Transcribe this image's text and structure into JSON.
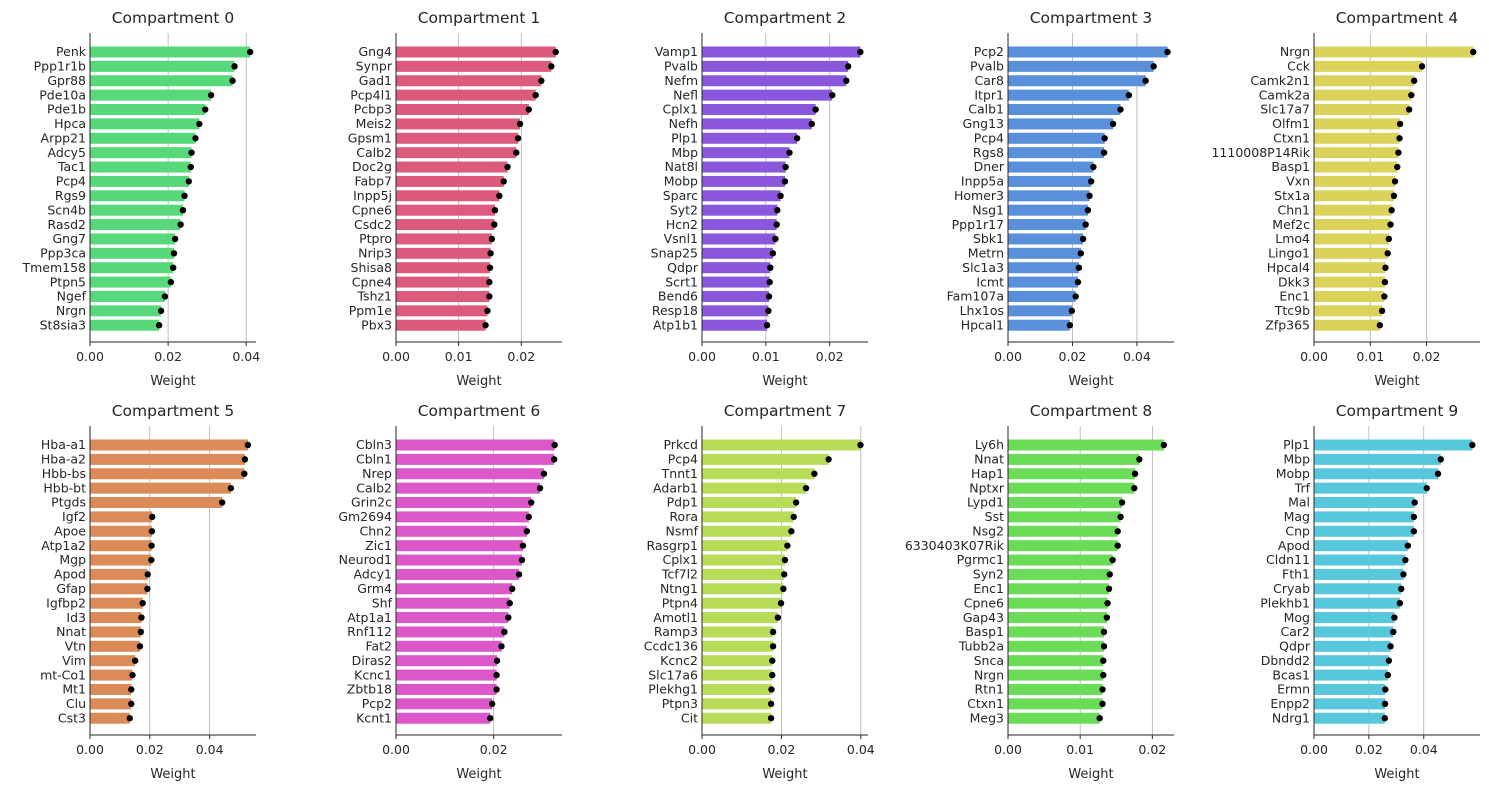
{
  "chart_data": [
    {
      "type": "bar",
      "title": "Compartment 0",
      "xlabel": "Weight",
      "color": "#57d87a",
      "xlim": [
        0,
        0.0425
      ],
      "xticks": [
        0,
        0.02,
        0.04
      ],
      "xtick_labels": [
        "0.00",
        "0.02",
        "0.04"
      ],
      "categories": [
        "Penk",
        "Ppp1r1b",
        "Gpr88",
        "Pde10a",
        "Pde1b",
        "Hpca",
        "Arpp21",
        "Adcy5",
        "Tac1",
        "Pcp4",
        "Rgs9",
        "Scn4b",
        "Rasd2",
        "Gng7",
        "Ppp3ca",
        "Tmem158",
        "Ptpn5",
        "Ngef",
        "Nrgn",
        "St8sia3"
      ],
      "values": [
        0.041,
        0.037,
        0.0365,
        0.031,
        0.0295,
        0.028,
        0.027,
        0.026,
        0.0258,
        0.0253,
        0.0242,
        0.0238,
        0.0232,
        0.0218,
        0.0215,
        0.0213,
        0.0207,
        0.0192,
        0.0182,
        0.0177
      ]
    },
    {
      "type": "bar",
      "title": "Compartment 1",
      "xlabel": "Weight",
      "color": "#dc5a7b",
      "xlim": [
        0,
        0.0265
      ],
      "xticks": [
        0,
        0.01,
        0.02
      ],
      "xtick_labels": [
        "0.00",
        "0.01",
        "0.02"
      ],
      "categories": [
        "Gng4",
        "Synpr",
        "Gad1",
        "Pcp4l1",
        "Pcbp3",
        "Meis2",
        "Gpsm1",
        "Calb2",
        "Doc2g",
        "Fabp7",
        "Inpp5j",
        "Cpne6",
        "Csdc2",
        "Ptpro",
        "Nrip3",
        "Shisa8",
        "Cpne4",
        "Tshz1",
        "Ppm1e",
        "Pbx3"
      ],
      "values": [
        0.0255,
        0.0248,
        0.0232,
        0.0223,
        0.0212,
        0.0198,
        0.0195,
        0.0192,
        0.0178,
        0.0172,
        0.0165,
        0.0158,
        0.0157,
        0.0153,
        0.0151,
        0.015,
        0.0149,
        0.0149,
        0.0146,
        0.0143
      ]
    },
    {
      "type": "bar",
      "title": "Compartment 2",
      "xlabel": "Weight",
      "color": "#8a57dc",
      "xlim": [
        0,
        0.026
      ],
      "xticks": [
        0,
        0.01,
        0.02
      ],
      "xtick_labels": [
        "0.00",
        "0.01",
        "0.02"
      ],
      "categories": [
        "Vamp1",
        "Pvalb",
        "Nefm",
        "Nefl",
        "Cplx1",
        "Nefh",
        "Plp1",
        "Mbp",
        "Nat8l",
        "Mobp",
        "Sparc",
        "Syt2",
        "Hcn2",
        "Vsnl1",
        "Snap25",
        "Qdpr",
        "Scrt1",
        "Bend6",
        "Resp18",
        "Atp1b1"
      ],
      "values": [
        0.0248,
        0.0229,
        0.0226,
        0.0204,
        0.0178,
        0.0172,
        0.0149,
        0.0137,
        0.0131,
        0.013,
        0.0123,
        0.0118,
        0.0117,
        0.0115,
        0.0111,
        0.0107,
        0.0106,
        0.0105,
        0.0104,
        0.0102
      ]
    },
    {
      "type": "bar",
      "title": "Compartment 3",
      "xlabel": "Weight",
      "color": "#5a8fdb",
      "xlim": [
        0,
        0.0515
      ],
      "xticks": [
        0,
        0.02,
        0.04
      ],
      "xtick_labels": [
        "0.00",
        "0.02",
        "0.04"
      ],
      "categories": [
        "Pcp2",
        "Pvalb",
        "Car8",
        "Itpr1",
        "Calb1",
        "Gng13",
        "Pcp4",
        "Rgs8",
        "Dner",
        "Inpp5a",
        "Homer3",
        "Nsg1",
        "Ppp1r17",
        "Sbk1",
        "Metrn",
        "Slc1a3",
        "Icmt",
        "Fam107a",
        "Lhx1os",
        "Hpcal1"
      ],
      "values": [
        0.0495,
        0.0452,
        0.0427,
        0.0375,
        0.0349,
        0.0326,
        0.03,
        0.0298,
        0.0265,
        0.0258,
        0.0253,
        0.0248,
        0.0241,
        0.0233,
        0.0226,
        0.022,
        0.0217,
        0.021,
        0.0198,
        0.0192
      ]
    },
    {
      "type": "bar",
      "title": "Compartment 4",
      "xlabel": "Weight",
      "color": "#dbd25a",
      "xlim": [
        0,
        0.0295
      ],
      "xticks": [
        0,
        0.01,
        0.02
      ],
      "xtick_labels": [
        "0.00",
        "0.01",
        "0.02"
      ],
      "categories": [
        "Nrgn",
        "Cck",
        "Camk2n1",
        "Camk2a",
        "Slc17a7",
        "Olfm1",
        "Ctxn1",
        "1110008P14Rik",
        "Basp1",
        "Vxn",
        "Stx1a",
        "Chn1",
        "Mef2c",
        "Lmo4",
        "Lingo1",
        "Hpcal4",
        "Dkk3",
        "Enc1",
        "Ttc9b",
        "Zfp365"
      ],
      "values": [
        0.0283,
        0.0192,
        0.0178,
        0.0173,
        0.0169,
        0.0153,
        0.0152,
        0.015,
        0.0148,
        0.0144,
        0.0142,
        0.0138,
        0.0136,
        0.0133,
        0.0131,
        0.0127,
        0.0126,
        0.0125,
        0.0121,
        0.0117
      ]
    },
    {
      "type": "bar",
      "title": "Compartment 5",
      "xlabel": "Weight",
      "color": "#dc8a57",
      "xlim": [
        0,
        0.0555
      ],
      "xticks": [
        0,
        0.02,
        0.04
      ],
      "xtick_labels": [
        "0.00",
        "0.02",
        "0.04"
      ],
      "categories": [
        "Hba-a1",
        "Hba-a2",
        "Hbb-bs",
        "Hbb-bt",
        "Ptgds",
        "Igf2",
        "Apoe",
        "Atp1a2",
        "Mgp",
        "Apod",
        "Gfap",
        "Igfbp2",
        "Id3",
        "Nnat",
        "Vtn",
        "Vim",
        "mt-Co1",
        "Mt1",
        "Clu",
        "Cst3"
      ],
      "values": [
        0.0528,
        0.0518,
        0.0516,
        0.0471,
        0.0442,
        0.0208,
        0.0207,
        0.0206,
        0.0205,
        0.0193,
        0.0192,
        0.0176,
        0.0172,
        0.017,
        0.0167,
        0.0151,
        0.0142,
        0.0138,
        0.0138,
        0.0133
      ]
    },
    {
      "type": "bar",
      "title": "Compartment 6",
      "xlabel": "Weight",
      "color": "#dc57c8",
      "xlim": [
        0,
        0.034
      ],
      "xticks": [
        0,
        0.02
      ],
      "xtick_labels": [
        "0.00",
        "0.02"
      ],
      "categories": [
        "Cbln3",
        "Cbln1",
        "Nrep",
        "Calb2",
        "Grin2c",
        "Gm2694",
        "Chn2",
        "Zic1",
        "Neurod1",
        "Adcy1",
        "Grm4",
        "Shf",
        "Atp1a1",
        "Rnf112",
        "Fat2",
        "Diras2",
        "Kcnc1",
        "Zbtb18",
        "Pcp2",
        "Kcnt1"
      ],
      "values": [
        0.0325,
        0.0324,
        0.0303,
        0.0295,
        0.0277,
        0.0272,
        0.0268,
        0.026,
        0.0258,
        0.0252,
        0.0238,
        0.0233,
        0.023,
        0.0222,
        0.0216,
        0.0207,
        0.0206,
        0.0206,
        0.0197,
        0.0193
      ]
    },
    {
      "type": "bar",
      "title": "Compartment 7",
      "xlabel": "Weight",
      "color": "#b8dc57",
      "xlim": [
        0,
        0.0418
      ],
      "xticks": [
        0,
        0.02,
        0.04
      ],
      "xtick_labels": [
        "0.00",
        "0.02",
        "0.04"
      ],
      "categories": [
        "Prkcd",
        "Pcp4",
        "Tnnt1",
        "Adarb1",
        "Pdp1",
        "Rora",
        "Nsmf",
        "Rasgrp1",
        "Cplx1",
        "Tcf7l2",
        "Ntng1",
        "Ptpn4",
        "Amotl1",
        "Ramp3",
        "Ccdc136",
        "Kcnc2",
        "Slc17a6",
        "Plekhg1",
        "Ptpn3",
        "Cit"
      ],
      "values": [
        0.0399,
        0.0319,
        0.0283,
        0.0262,
        0.0237,
        0.0231,
        0.0225,
        0.0215,
        0.0209,
        0.0207,
        0.0205,
        0.0199,
        0.0191,
        0.0179,
        0.0179,
        0.0177,
        0.0177,
        0.0175,
        0.0174,
        0.0174
      ]
    },
    {
      "type": "bar",
      "title": "Compartment 8",
      "xlabel": "Weight",
      "color": "#6bdc57",
      "xlim": [
        0,
        0.023
      ],
      "xticks": [
        0,
        0.01,
        0.02
      ],
      "xtick_labels": [
        "0.00",
        "0.01",
        "0.02"
      ],
      "categories": [
        "Ly6h",
        "Nnat",
        "Hap1",
        "Nptxr",
        "Lypd1",
        "Sst",
        "Nsg2",
        "6330403K07Rik",
        "Pgrmc1",
        "Syn2",
        "Enc1",
        "Cpne6",
        "Gap43",
        "Basp1",
        "Tubb2a",
        "Snca",
        "Nrgn",
        "Rtn1",
        "Ctxn1",
        "Meg3"
      ],
      "values": [
        0.0216,
        0.0182,
        0.0176,
        0.0175,
        0.0158,
        0.0156,
        0.0152,
        0.0152,
        0.0145,
        0.0141,
        0.014,
        0.0138,
        0.0137,
        0.0133,
        0.0133,
        0.0132,
        0.0132,
        0.0131,
        0.0131,
        0.0127
      ]
    },
    {
      "type": "bar",
      "title": "Compartment 9",
      "xlabel": "Weight",
      "color": "#57c8dc",
      "xlim": [
        0,
        0.0605
      ],
      "xticks": [
        0,
        0.02,
        0.04
      ],
      "xtick_labels": [
        "0.00",
        "0.02",
        "0.04"
      ],
      "categories": [
        "Plp1",
        "Mbp",
        "Mobp",
        "Trf",
        "Mal",
        "Mag",
        "Cnp",
        "Apod",
        "Cldn11",
        "Fth1",
        "Cryab",
        "Plekhb1",
        "Mog",
        "Car2",
        "Qdpr",
        "Dbndd2",
        "Bcas1",
        "Ermn",
        "Enpp2",
        "Ndrg1"
      ],
      "values": [
        0.0577,
        0.0462,
        0.0452,
        0.0411,
        0.0367,
        0.0364,
        0.0364,
        0.0342,
        0.0333,
        0.0326,
        0.0318,
        0.0313,
        0.0293,
        0.0289,
        0.0279,
        0.0273,
        0.0269,
        0.026,
        0.0259,
        0.0258
      ]
    }
  ]
}
